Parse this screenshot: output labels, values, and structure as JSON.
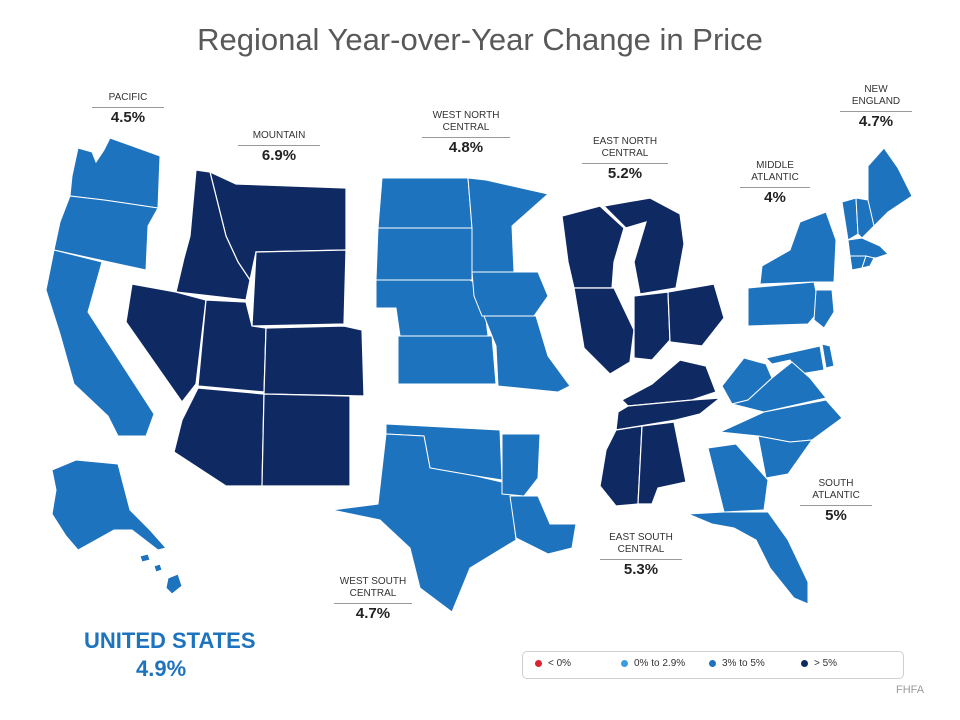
{
  "title": "Regional Year-over-Year Change in Price",
  "colors": {
    "negative": "#d9232d",
    "low": "#3d9be0",
    "mid": "#1e73be",
    "high": "#0f2a63",
    "border": "#ffffff"
  },
  "regions": {
    "pacific": {
      "name": "PACIFIC",
      "value": "4.5%"
    },
    "mountain": {
      "name": "MOUNTAIN",
      "value": "6.9%"
    },
    "west_north_central": {
      "name_line1": "WEST NORTH",
      "name_line2": "CENTRAL",
      "value": "4.8%"
    },
    "east_north_central": {
      "name_line1": "EAST NORTH",
      "name_line2": "CENTRAL",
      "value": "5.2%"
    },
    "middle_atlantic": {
      "name_line1": "MIDDLE",
      "name_line2": "ATLANTIC",
      "value": "4%"
    },
    "new_england": {
      "name_line1": "NEW",
      "name_line2": "ENGLAND",
      "value": "4.7%"
    },
    "south_atlantic": {
      "name_line1": "SOUTH",
      "name_line2": "ATLANTIC",
      "value": "5%"
    },
    "east_south_central": {
      "name_line1": "EAST SOUTH",
      "name_line2": "CENTRAL",
      "value": "5.3%"
    },
    "west_south_central": {
      "name_line1": "WEST SOUTH",
      "name_line2": "CENTRAL",
      "value": "4.7%"
    }
  },
  "national": {
    "name": "UNITED STATES",
    "value": "4.9%"
  },
  "legend": [
    "< 0%",
    "0% to 2.9%",
    "3% to 5%",
    "> 5%"
  ],
  "source": "FHFA"
}
